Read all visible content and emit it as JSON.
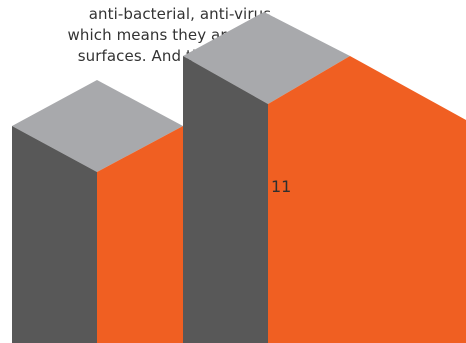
{
  "body_text": {
    "lines": [
      "anti-bacterial,  anti-virus,",
      "which means they are easy",
      "surfaces. And that is what"
    ]
  },
  "page_number": "11",
  "colors": {
    "orange": "#f05f22",
    "dark_gray": "#585858",
    "light_gray": "#a8a9ac",
    "text": "#333333",
    "background": "#ffffff"
  }
}
